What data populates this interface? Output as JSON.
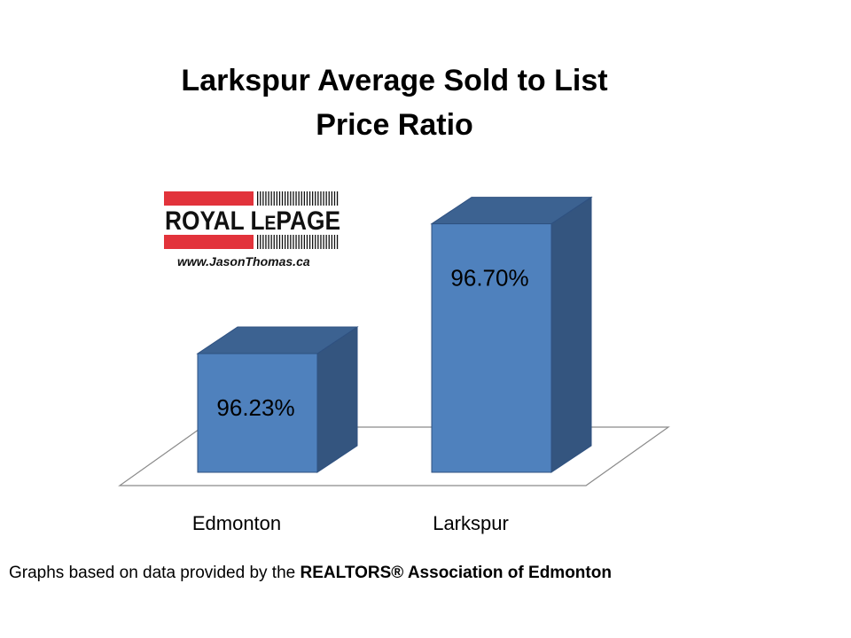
{
  "chart_data": {
    "type": "bar",
    "style": "3d",
    "title_lines": [
      "Larkspur Average Sold to List",
      "Price Ratio"
    ],
    "categories": [
      "Edmonton",
      "Larkspur"
    ],
    "values": [
      96.23,
      96.7
    ],
    "value_labels": [
      "96.23%",
      "96.70%"
    ],
    "ylim": [
      95.8,
      96.75
    ],
    "xlabel": "",
    "ylabel": "",
    "grid": false,
    "legend": "none"
  },
  "logo": {
    "brand_prefix": "ROYAL L",
    "brand_small": "E",
    "brand_suffix": "PAGE",
    "url": "www.JasonThomas.ca"
  },
  "footer": {
    "prefix": "Graphs based on data provided by the ",
    "bold": "REALTORS® Association of Edmonton"
  },
  "colors": {
    "bar_front": "#4f81bd",
    "bar_top": "#3c6291",
    "bar_side": "#34557f",
    "bar_edge": "#2f5180",
    "logo_red": "#e2333b"
  }
}
